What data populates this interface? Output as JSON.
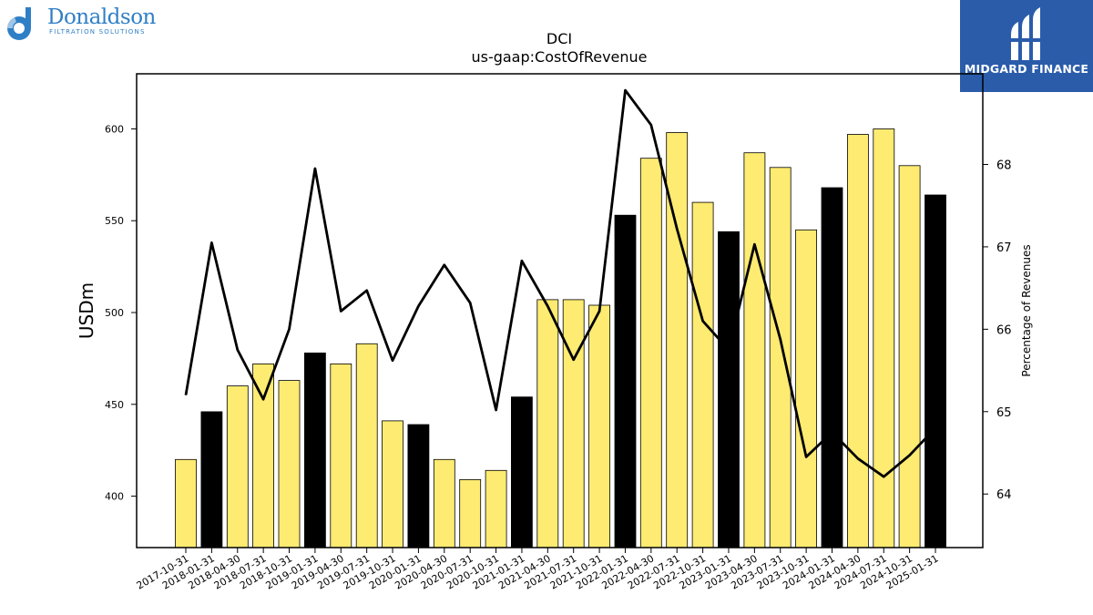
{
  "branding": {
    "left_logo_name": "Donaldson",
    "left_logo_tagline": "FILTRATION SOLUTIONS",
    "right_logo_name": "MIDGARD FINANCE"
  },
  "colors": {
    "bar_default": "#fdeb72",
    "bar_highlight": "#000000",
    "line": "#000000",
    "logo_blue": "#2a5caa",
    "donaldson_blue": "#2f7fc6"
  },
  "chart_data": {
    "type": "bar",
    "title": "DCI",
    "subtitle": "us-gaap:CostOfRevenue",
    "ylabel": "USDm",
    "y2label": "Percentage of Revenues",
    "ylim": [
      372,
      630
    ],
    "y2lim": [
      63.35,
      69.1
    ],
    "yticks": [
      400,
      450,
      500,
      550,
      600
    ],
    "y2ticks": [
      64,
      65,
      66,
      67,
      68
    ],
    "grid": false,
    "categories": [
      "2017-10-31",
      "2018-01-31",
      "2018-04-30",
      "2018-07-31",
      "2018-10-31",
      "2019-01-31",
      "2019-04-30",
      "2019-07-31",
      "2019-10-31",
      "2020-01-31",
      "2020-04-30",
      "2020-07-31",
      "2020-10-31",
      "2021-01-31",
      "2021-04-30",
      "2021-07-31",
      "2021-10-31",
      "2022-01-31",
      "2022-04-30",
      "2022-07-31",
      "2022-10-31",
      "2023-01-31",
      "2023-04-30",
      "2023-07-31",
      "2023-10-31",
      "2024-01-31",
      "2024-04-30",
      "2024-07-31",
      "2024-10-31",
      "2025-01-31"
    ],
    "series": [
      {
        "type": "bar",
        "axis": "left",
        "values": [
          420,
          446,
          460,
          472,
          463,
          478,
          472,
          483,
          441,
          439,
          420,
          409,
          414,
          454,
          507,
          507,
          504,
          553,
          584,
          598,
          560,
          544,
          587,
          579,
          545,
          568,
          597,
          600,
          580,
          564
        ],
        "highlight": [
          false,
          true,
          false,
          false,
          false,
          true,
          false,
          false,
          false,
          true,
          false,
          false,
          false,
          true,
          false,
          false,
          false,
          true,
          false,
          false,
          false,
          true,
          false,
          false,
          false,
          true,
          false,
          false,
          false,
          true
        ]
      },
      {
        "type": "line",
        "axis": "right",
        "values": [
          65.2,
          67.05,
          65.75,
          65.15,
          66.0,
          67.95,
          66.22,
          66.47,
          65.62,
          66.28,
          66.78,
          66.32,
          65.02,
          66.83,
          66.28,
          65.63,
          66.22,
          68.9,
          68.48,
          67.22,
          66.1,
          65.75,
          67.03,
          65.88,
          64.45,
          64.75,
          64.43,
          64.21,
          64.47,
          64.8
        ]
      }
    ]
  }
}
